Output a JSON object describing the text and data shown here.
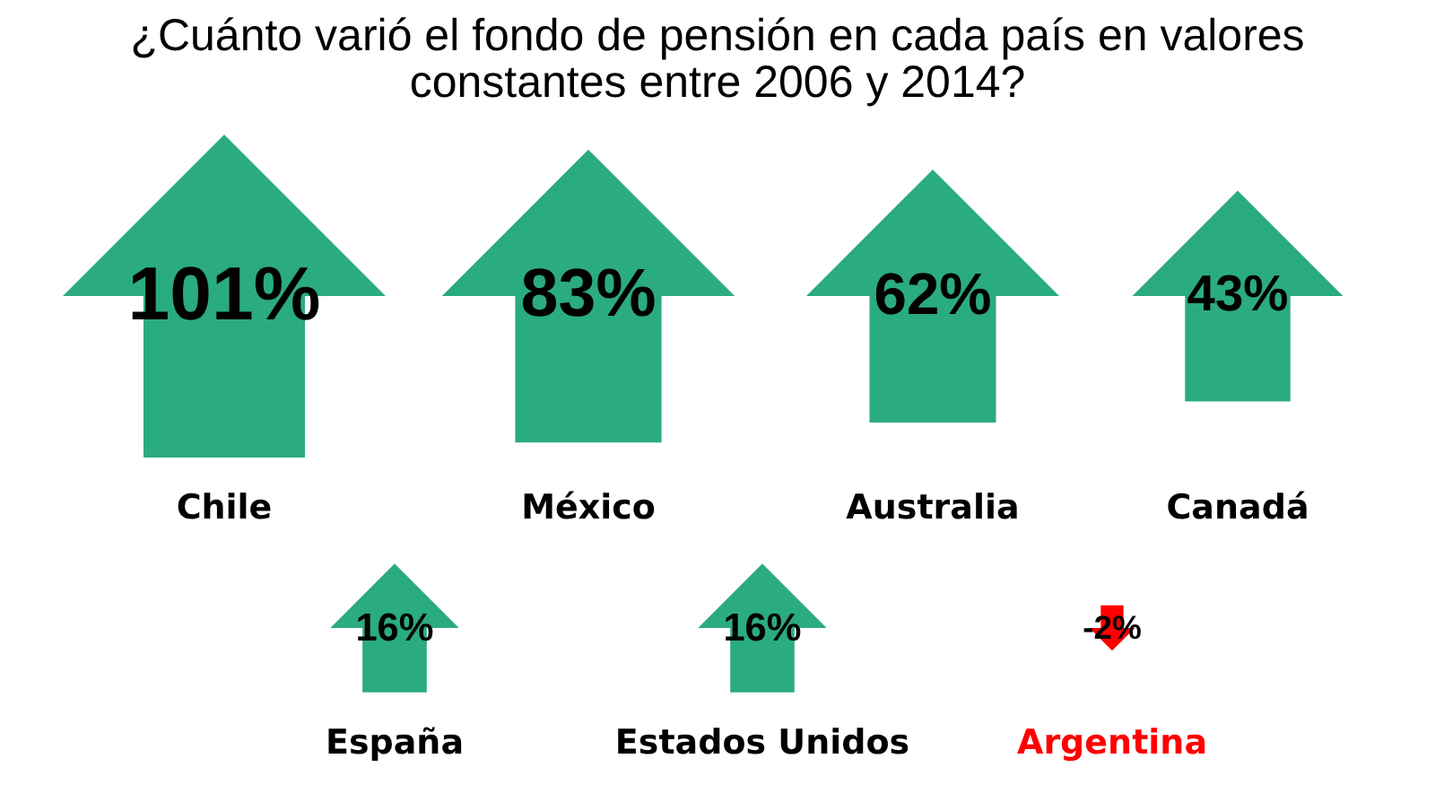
{
  "chart_data": {
    "type": "other",
    "title": "¿Cuánto varió el fondo de pensión en cada país en valores constantes entre 2006 y 2014?",
    "categories": [
      "Chile",
      "México",
      "Australia",
      "Canadá",
      "España",
      "Estados Unidos",
      "Argentina"
    ],
    "values": [
      101,
      83,
      62,
      43,
      16,
      16,
      -2
    ],
    "value_labels": [
      "101%",
      "83%",
      "62%",
      "43%",
      "16%",
      "16%",
      "-2%"
    ],
    "colors": [
      "#2bab80",
      "#2bab80",
      "#2bab80",
      "#2bab80",
      "#2bab80",
      "#2bab80",
      "#ff0000"
    ]
  }
}
